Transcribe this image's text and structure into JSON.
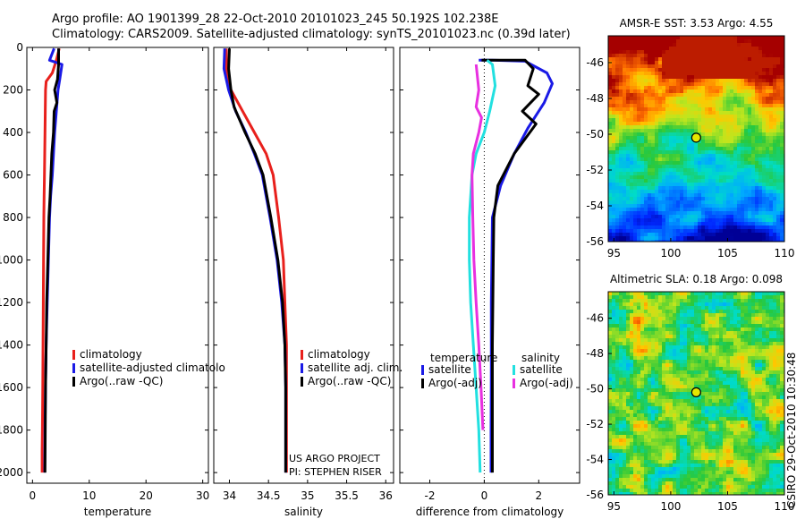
{
  "header": {
    "title_line1": "Argo profile: AO 1901399_28 22-Oct-2010 20101023_245 50.192S 102.238E",
    "title_line2": "Climatology: CARS2009. Satellite-adjusted climatology: synTS_20101023.nc (0.39d later)"
  },
  "credits": {
    "project_line1": "US ARGO PROJECT",
    "project_line2": "PI: STEPHEN RISER",
    "side_label": "CSIRO 29-Oct-2010 10:30:48"
  },
  "colors": {
    "climatology": "#e8201c",
    "satellite": "#1a1ae6",
    "argo": "#000000",
    "salinity_satellite": "#22e0e0",
    "salinity_argo": "#e830e0"
  },
  "chart_data": [
    {
      "type": "line",
      "id": "temperature",
      "xlabel": "temperature",
      "ylabel": "",
      "xlim": [
        -1,
        31
      ],
      "ylim": [
        2050,
        0
      ],
      "xticks": [
        "0",
        "10",
        "20",
        "30"
      ],
      "yticks": [
        "0",
        "200",
        "400",
        "600",
        "800",
        "1000",
        "1200",
        "1400",
        "1600",
        "1800",
        "2000"
      ],
      "legend": [
        "climatology",
        "satellite-adjusted climatolo",
        "Argo(..raw -QC)"
      ],
      "series": [
        {
          "name": "climatology",
          "color": "#e8201c",
          "x": [
            4.7,
            4.2,
            3.5,
            2.4,
            2.3,
            2.25,
            2.2,
            2.15,
            2.1,
            2.05,
            2.0,
            1.95,
            1.9,
            1.85,
            1.8,
            1.75,
            1.7,
            1.7
          ],
          "y": [
            5,
            60,
            120,
            160,
            200,
            300,
            400,
            500,
            600,
            700,
            800,
            1000,
            1200,
            1400,
            1600,
            1800,
            1900,
            2000
          ]
        },
        {
          "name": "satellite-adjusted climatolo",
          "color": "#1a1ae6",
          "x": [
            3.8,
            3.0,
            5.2,
            4.8,
            4.5,
            4.2,
            3.9,
            3.7,
            3.5,
            3.2,
            3.0,
            2.8,
            2.6,
            2.4,
            2.3,
            2.2,
            2.15
          ],
          "y": [
            5,
            60,
            80,
            150,
            200,
            300,
            400,
            500,
            600,
            700,
            800,
            1000,
            1200,
            1400,
            1600,
            1800,
            2000
          ]
        },
        {
          "name": "Argo(..raw -QC)",
          "color": "#000000",
          "x": [
            4.6,
            4.6,
            4.4,
            3.9,
            4.3,
            3.8,
            3.7,
            3.4,
            3.1,
            2.9,
            2.7,
            2.5,
            2.4,
            2.3,
            2.2
          ],
          "y": [
            5,
            80,
            150,
            200,
            260,
            300,
            400,
            500,
            700,
            800,
            1000,
            1200,
            1400,
            1600,
            2000
          ]
        }
      ]
    },
    {
      "type": "line",
      "id": "salinity",
      "xlabel": "salinity",
      "ylabel": "",
      "xlim": [
        33.8,
        36.1
      ],
      "ylim": [
        2050,
        0
      ],
      "xticks": [
        "34",
        "34.5",
        "35",
        "35.5",
        "36"
      ],
      "legend": [
        "climatology",
        "satellite adj. clim.",
        "Argo(..raw -QC)"
      ],
      "series": [
        {
          "name": "climatology",
          "color": "#e8201c",
          "x": [
            33.96,
            33.96,
            34.02,
            34.17,
            34.32,
            34.47,
            34.56,
            34.63,
            34.69,
            34.71,
            34.73,
            34.73,
            34.73
          ],
          "y": [
            5,
            100,
            200,
            300,
            400,
            500,
            600,
            800,
            1000,
            1200,
            1400,
            1600,
            2000
          ]
        },
        {
          "name": "satellite adj. clim.",
          "color": "#1a1ae6",
          "x": [
            33.94,
            33.93,
            33.99,
            34.08,
            34.21,
            34.32,
            34.42,
            34.52,
            34.61,
            34.67,
            34.71,
            34.72,
            34.72
          ],
          "y": [
            5,
            100,
            200,
            300,
            400,
            500,
            600,
            800,
            1000,
            1200,
            1400,
            1600,
            2000
          ]
        },
        {
          "name": "Argo(..raw -QC)",
          "color": "#000000",
          "x": [
            34.0,
            33.99,
            34.02,
            34.06,
            34.2,
            34.33,
            34.43,
            34.53,
            34.62,
            34.68,
            34.71,
            34.72,
            34.72
          ],
          "y": [
            5,
            100,
            200,
            280,
            400,
            500,
            600,
            800,
            1000,
            1200,
            1400,
            1600,
            2000
          ]
        }
      ]
    },
    {
      "type": "line",
      "id": "difference",
      "xlabel": "difference from climatology",
      "ylabel": "",
      "xlim": [
        -3.1,
        3.5
      ],
      "ylim": [
        2050,
        0
      ],
      "xticks": [
        "-2",
        "0",
        "2"
      ],
      "legend_titles": [
        "temperature",
        "salinity"
      ],
      "legend": [
        "satellite",
        "Argo(-adj)",
        "satellite",
        "Argo(-adj)"
      ],
      "series": [
        {
          "name": "temperature satellite",
          "color": "#1a1ae6",
          "x": [
            -0.2,
            0.3,
            1.5,
            2.3,
            2.5,
            2.2,
            1.6,
            1.1,
            0.6,
            0.3,
            0.28,
            0.26,
            0.26,
            0.25,
            0.25
          ],
          "y": [
            60,
            60,
            65,
            120,
            170,
            260,
            380,
            500,
            650,
            800,
            1000,
            1200,
            1500,
            1800,
            2000
          ]
        },
        {
          "name": "temperature Argo(-adj)",
          "color": "#000000",
          "x": [
            -0.1,
            0.5,
            1.5,
            1.8,
            1.6,
            2.0,
            1.4,
            1.9,
            1.1,
            0.5,
            0.35,
            0.33,
            0.3,
            0.3,
            0.3
          ],
          "y": [
            60,
            60,
            60,
            100,
            180,
            220,
            300,
            360,
            500,
            650,
            800,
            1000,
            1400,
            1800,
            2000
          ]
        },
        {
          "name": "salinity satellite",
          "color": "#22e0e0",
          "x": [
            0.1,
            0.3,
            0.4,
            0.2,
            0.0,
            -0.3,
            -0.45,
            -0.55,
            -0.55,
            -0.5,
            -0.4,
            -0.3,
            -0.2,
            -0.15
          ],
          "y": [
            60,
            80,
            180,
            300,
            400,
            500,
            600,
            800,
            1000,
            1200,
            1400,
            1600,
            1800,
            2000
          ]
        },
        {
          "name": "salinity Argo(-adj)",
          "color": "#e830e0",
          "x": [
            -0.3,
            -0.2,
            -0.3,
            -0.1,
            -0.2,
            -0.4,
            -0.45,
            -0.42,
            -0.38,
            -0.3,
            -0.2,
            -0.12,
            -0.05
          ],
          "y": [
            80,
            200,
            280,
            330,
            400,
            500,
            600,
            800,
            1000,
            1200,
            1400,
            1600,
            1800
          ]
        }
      ]
    },
    {
      "type": "heatmap",
      "id": "sst_map",
      "title": "AMSR-E SST: 3.53 Argo: 4.55",
      "xlim": [
        94.5,
        110
      ],
      "ylim": [
        -56,
        -44.5
      ],
      "xticks": [
        "95",
        "100",
        "105",
        "110"
      ],
      "yticks": [
        "-46",
        "-48",
        "-50",
        "-52",
        "-54",
        "-56"
      ],
      "marker": {
        "x": 102.238,
        "y": -50.192
      }
    },
    {
      "type": "heatmap",
      "id": "sla_map",
      "title": "Altimetric SLA: 0.18 Argo: 0.098",
      "xlim": [
        94.5,
        110
      ],
      "ylim": [
        -56,
        -44.5
      ],
      "xticks": [
        "95",
        "100",
        "105",
        "110"
      ],
      "yticks": [
        "-46",
        "-48",
        "-50",
        "-52",
        "-54",
        "-56"
      ],
      "marker": {
        "x": 102.238,
        "y": -50.192
      }
    }
  ]
}
